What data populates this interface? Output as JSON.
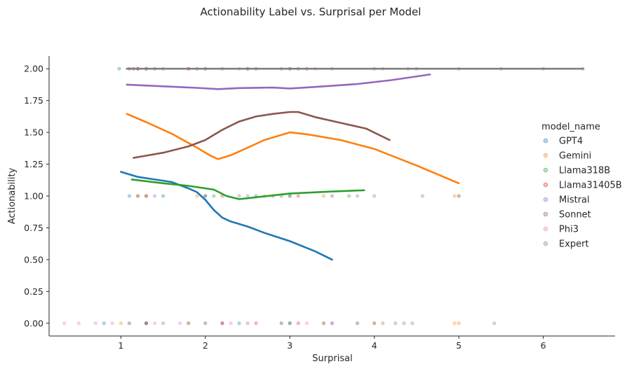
{
  "chart_data": {
    "type": "scatter",
    "title": "Actionability Label vs. Surprisal per Model",
    "xlabel": "Surprisal",
    "ylabel": "Actionability",
    "xlim": [
      0.15,
      6.85
    ],
    "ylim": [
      -0.1,
      2.1
    ],
    "xticks": [
      "1",
      "2",
      "3",
      "4",
      "5",
      "6"
    ],
    "yticks": [
      "0.00",
      "0.25",
      "0.50",
      "0.75",
      "1.00",
      "1.25",
      "1.50",
      "1.75",
      "2.00"
    ],
    "grid": false,
    "legend_title": "model_name",
    "legend_position": "right",
    "series": [
      {
        "name": "GPT4",
        "color": "#1f77b4",
        "points": [
          [
            0.98,
            2.0
          ],
          [
            1.4,
            2.0
          ],
          [
            1.9,
            2.0
          ],
          [
            2.5,
            2.0
          ],
          [
            3.1,
            2.0
          ],
          [
            1.1,
            1.0
          ],
          [
            1.5,
            1.0
          ],
          [
            2.0,
            1.0
          ],
          [
            2.6,
            1.0
          ],
          [
            3.0,
            1.0
          ],
          [
            0.8,
            0.0
          ],
          [
            1.3,
            0.0
          ],
          [
            1.8,
            0.0
          ],
          [
            2.4,
            0.0
          ],
          [
            3.0,
            0.0
          ],
          [
            3.5,
            0.0
          ]
        ],
        "trend": [
          [
            1.0,
            1.19
          ],
          [
            1.2,
            1.15
          ],
          [
            1.4,
            1.13
          ],
          [
            1.6,
            1.11
          ],
          [
            1.8,
            1.06
          ],
          [
            1.9,
            1.03
          ],
          [
            2.0,
            0.97
          ],
          [
            2.1,
            0.89
          ],
          [
            2.2,
            0.83
          ],
          [
            2.3,
            0.8
          ],
          [
            2.5,
            0.76
          ],
          [
            2.7,
            0.71
          ],
          [
            3.0,
            0.645
          ],
          [
            3.3,
            0.565
          ],
          [
            3.5,
            0.5
          ]
        ]
      },
      {
        "name": "Gemini",
        "color": "#ff7f0e",
        "points": [
          [
            1.2,
            2.0
          ],
          [
            1.8,
            2.0
          ],
          [
            2.4,
            2.0
          ],
          [
            3.3,
            2.0
          ],
          [
            4.1,
            2.0
          ],
          [
            1.2,
            1.0
          ],
          [
            1.9,
            1.0
          ],
          [
            2.7,
            1.0
          ],
          [
            3.4,
            1.0
          ],
          [
            4.95,
            1.0
          ],
          [
            5.0,
            1.0
          ],
          [
            1.0,
            0.0
          ],
          [
            1.8,
            0.0
          ],
          [
            2.6,
            0.0
          ],
          [
            3.4,
            0.0
          ],
          [
            4.0,
            0.0
          ],
          [
            4.95,
            0.0
          ],
          [
            5.0,
            0.0
          ]
        ],
        "trend": [
          [
            1.07,
            1.645
          ],
          [
            1.3,
            1.58
          ],
          [
            1.6,
            1.49
          ],
          [
            1.9,
            1.38
          ],
          [
            2.05,
            1.32
          ],
          [
            2.15,
            1.29
          ],
          [
            2.2,
            1.3
          ],
          [
            2.3,
            1.32
          ],
          [
            2.5,
            1.38
          ],
          [
            2.7,
            1.44
          ],
          [
            2.9,
            1.48
          ],
          [
            3.0,
            1.5
          ],
          [
            3.2,
            1.485
          ],
          [
            3.6,
            1.44
          ],
          [
            4.0,
            1.37
          ],
          [
            4.5,
            1.24
          ],
          [
            5.0,
            1.1
          ]
        ]
      },
      {
        "name": "Llama318B",
        "color": "#2ca02c",
        "points": [
          [
            1.3,
            2.0
          ],
          [
            2.0,
            2.0
          ],
          [
            2.9,
            2.0
          ],
          [
            1.3,
            1.0
          ],
          [
            2.1,
            1.0
          ],
          [
            2.9,
            1.0
          ],
          [
            3.7,
            1.0
          ],
          [
            1.1,
            0.0
          ],
          [
            2.0,
            0.0
          ],
          [
            2.9,
            0.0
          ],
          [
            3.8,
            0.0
          ]
        ],
        "trend": [
          [
            1.13,
            1.13
          ],
          [
            1.5,
            1.1
          ],
          [
            1.8,
            1.08
          ],
          [
            2.1,
            1.05
          ],
          [
            2.25,
            1.0
          ],
          [
            2.4,
            0.975
          ],
          [
            2.6,
            0.99
          ],
          [
            3.0,
            1.02
          ],
          [
            3.5,
            1.035
          ],
          [
            3.88,
            1.045
          ]
        ]
      },
      {
        "name": "Llama31405B",
        "color": "#d62728",
        "points": [
          [
            1.1,
            2.0
          ],
          [
            1.15,
            2.0
          ],
          [
            1.2,
            2.0
          ],
          [
            1.8,
            2.0
          ],
          [
            2.6,
            2.0
          ],
          [
            3.2,
            2.0
          ],
          [
            1.3,
            1.0
          ],
          [
            2.2,
            1.0
          ],
          [
            3.1,
            1.0
          ],
          [
            1.3,
            0.0
          ],
          [
            2.2,
            0.0
          ],
          [
            3.1,
            0.0
          ]
        ],
        "trend": null
      },
      {
        "name": "Mistral",
        "color": "#9467bd",
        "points": [
          [
            1.5,
            2.0
          ],
          [
            2.5,
            2.0
          ],
          [
            3.5,
            2.0
          ],
          [
            4.4,
            2.0
          ],
          [
            1.4,
            1.0
          ],
          [
            2.4,
            1.0
          ],
          [
            1.5,
            0.0
          ],
          [
            2.5,
            0.0
          ],
          [
            3.4,
            0.0
          ]
        ],
        "trend": [
          [
            1.07,
            1.875
          ],
          [
            1.5,
            1.862
          ],
          [
            1.9,
            1.85
          ],
          [
            2.15,
            1.84
          ],
          [
            2.4,
            1.848
          ],
          [
            2.8,
            1.852
          ],
          [
            3.0,
            1.845
          ],
          [
            3.3,
            1.857
          ],
          [
            3.8,
            1.88
          ],
          [
            4.2,
            1.91
          ],
          [
            4.66,
            1.955
          ]
        ]
      },
      {
        "name": "Sonnet",
        "color": "#8c564b",
        "points": [
          [
            1.3,
            2.0
          ],
          [
            2.2,
            2.0
          ],
          [
            3.0,
            2.0
          ],
          [
            1.2,
            1.0
          ],
          [
            2.0,
            1.0
          ],
          [
            2.8,
            1.0
          ],
          [
            3.5,
            1.0
          ],
          [
            1.3,
            0.0
          ],
          [
            2.2,
            0.0
          ],
          [
            3.0,
            0.0
          ]
        ],
        "trend": [
          [
            1.15,
            1.3
          ],
          [
            1.5,
            1.34
          ],
          [
            1.8,
            1.39
          ],
          [
            2.0,
            1.44
          ],
          [
            2.2,
            1.52
          ],
          [
            2.4,
            1.585
          ],
          [
            2.6,
            1.625
          ],
          [
            2.8,
            1.645
          ],
          [
            3.0,
            1.66
          ],
          [
            3.1,
            1.66
          ],
          [
            3.3,
            1.62
          ],
          [
            3.6,
            1.575
          ],
          [
            3.9,
            1.53
          ],
          [
            4.18,
            1.44
          ]
        ]
      },
      {
        "name": "Phi3",
        "color": "#e377c2",
        "points": [
          [
            0.33,
            0.0
          ],
          [
            0.5,
            0.0
          ],
          [
            0.7,
            0.0
          ],
          [
            0.9,
            0.0
          ],
          [
            1.1,
            0.0
          ],
          [
            1.4,
            0.0
          ],
          [
            1.7,
            0.0
          ],
          [
            2.0,
            0.0
          ],
          [
            2.3,
            0.0
          ],
          [
            2.6,
            0.0
          ],
          [
            2.9,
            0.0
          ],
          [
            3.2,
            0.0
          ],
          [
            3.5,
            0.0
          ],
          [
            3.8,
            0.0
          ]
        ],
        "trend": null
      },
      {
        "name": "Expert",
        "color": "#7f7f7f",
        "points": [
          [
            1.2,
            2.0
          ],
          [
            2.0,
            2.0
          ],
          [
            3.0,
            2.0
          ],
          [
            4.0,
            2.0
          ],
          [
            4.5,
            2.0
          ],
          [
            5.0,
            2.0
          ],
          [
            5.5,
            2.0
          ],
          [
            6.0,
            2.0
          ],
          [
            6.47,
            2.0
          ],
          [
            2.5,
            1.0
          ],
          [
            3.0,
            1.0
          ],
          [
            3.8,
            1.0
          ],
          [
            4.0,
            1.0
          ],
          [
            4.57,
            1.0
          ],
          [
            5.0,
            1.0
          ],
          [
            4.0,
            0.0
          ],
          [
            4.1,
            0.0
          ],
          [
            4.25,
            0.0
          ],
          [
            4.35,
            0.0
          ],
          [
            4.45,
            0.0
          ],
          [
            5.42,
            0.0
          ]
        ],
        "trend": [
          [
            1.07,
            2.0
          ],
          [
            6.47,
            2.0
          ]
        ]
      }
    ]
  }
}
